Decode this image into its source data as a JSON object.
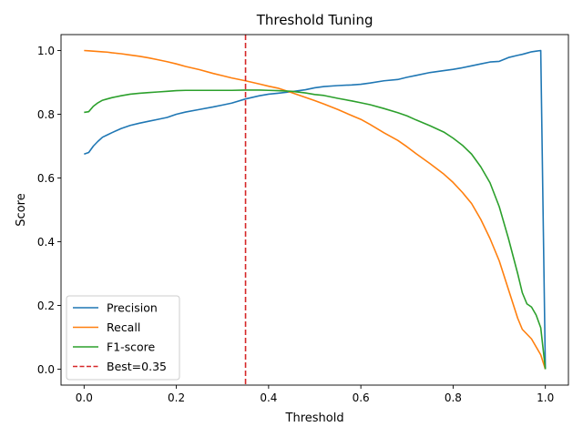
{
  "chart_data": {
    "type": "line",
    "title": "Threshold Tuning",
    "xlabel": "Threshold",
    "ylabel": "Score",
    "xlim": [
      -0.05,
      1.05
    ],
    "ylim": [
      -0.05,
      1.05
    ],
    "xticks": [
      0.0,
      0.2,
      0.4,
      0.6,
      0.8,
      1.0
    ],
    "yticks": [
      0.0,
      0.2,
      0.4,
      0.6,
      0.8,
      1.0
    ],
    "xtick_labels": [
      "0.0",
      "0.2",
      "0.4",
      "0.6",
      "0.8",
      "1.0"
    ],
    "ytick_labels": [
      "0.0",
      "0.2",
      "0.4",
      "0.6",
      "0.8",
      "1.0"
    ],
    "grid": false,
    "legend_position": "lower-left",
    "x": [
      0.0,
      0.01,
      0.02,
      0.03,
      0.04,
      0.05,
      0.06,
      0.08,
      0.1,
      0.12,
      0.14,
      0.16,
      0.18,
      0.2,
      0.22,
      0.25,
      0.28,
      0.3,
      0.32,
      0.35,
      0.38,
      0.4,
      0.42,
      0.45,
      0.48,
      0.5,
      0.52,
      0.55,
      0.58,
      0.6,
      0.62,
      0.65,
      0.68,
      0.7,
      0.72,
      0.75,
      0.78,
      0.8,
      0.82,
      0.84,
      0.86,
      0.88,
      0.9,
      0.92,
      0.94,
      0.95,
      0.96,
      0.97,
      0.98,
      0.99,
      1.0
    ],
    "series": [
      {
        "name": "Precision",
        "color": "#1f77b4",
        "style": "solid",
        "values": [
          0.675,
          0.68,
          0.7,
          0.715,
          0.728,
          0.735,
          0.742,
          0.755,
          0.765,
          0.772,
          0.778,
          0.784,
          0.79,
          0.8,
          0.807,
          0.815,
          0.823,
          0.829,
          0.835,
          0.848,
          0.858,
          0.863,
          0.866,
          0.871,
          0.877,
          0.883,
          0.887,
          0.89,
          0.892,
          0.894,
          0.898,
          0.905,
          0.909,
          0.916,
          0.922,
          0.931,
          0.937,
          0.941,
          0.946,
          0.952,
          0.958,
          0.964,
          0.966,
          0.978,
          0.985,
          0.988,
          0.992,
          0.996,
          0.998,
          1.0,
          0.0
        ]
      },
      {
        "name": "Recall",
        "color": "#ff7f0e",
        "style": "solid",
        "values": [
          1.0,
          0.999,
          0.998,
          0.997,
          0.996,
          0.995,
          0.993,
          0.99,
          0.986,
          0.982,
          0.977,
          0.971,
          0.965,
          0.958,
          0.95,
          0.94,
          0.928,
          0.921,
          0.914,
          0.905,
          0.895,
          0.888,
          0.882,
          0.868,
          0.853,
          0.843,
          0.832,
          0.815,
          0.796,
          0.784,
          0.768,
          0.742,
          0.718,
          0.698,
          0.676,
          0.645,
          0.612,
          0.586,
          0.555,
          0.52,
          0.47,
          0.41,
          0.34,
          0.25,
          0.16,
          0.125,
          0.11,
          0.095,
          0.07,
          0.045,
          0.0
        ]
      },
      {
        "name": "F1-score",
        "color": "#2ca02c",
        "style": "solid",
        "values": [
          0.806,
          0.808,
          0.825,
          0.836,
          0.844,
          0.848,
          0.852,
          0.858,
          0.863,
          0.866,
          0.868,
          0.87,
          0.872,
          0.874,
          0.875,
          0.875,
          0.875,
          0.875,
          0.875,
          0.876,
          0.876,
          0.875,
          0.874,
          0.872,
          0.867,
          0.862,
          0.859,
          0.85,
          0.842,
          0.836,
          0.83,
          0.818,
          0.805,
          0.795,
          0.782,
          0.764,
          0.744,
          0.725,
          0.703,
          0.675,
          0.635,
          0.585,
          0.51,
          0.41,
          0.3,
          0.24,
          0.205,
          0.195,
          0.17,
          0.13,
          0.0
        ]
      }
    ],
    "reference_line": {
      "name": "Best=0.35",
      "x": 0.35,
      "color": "#d62728",
      "style": "dashed"
    }
  }
}
